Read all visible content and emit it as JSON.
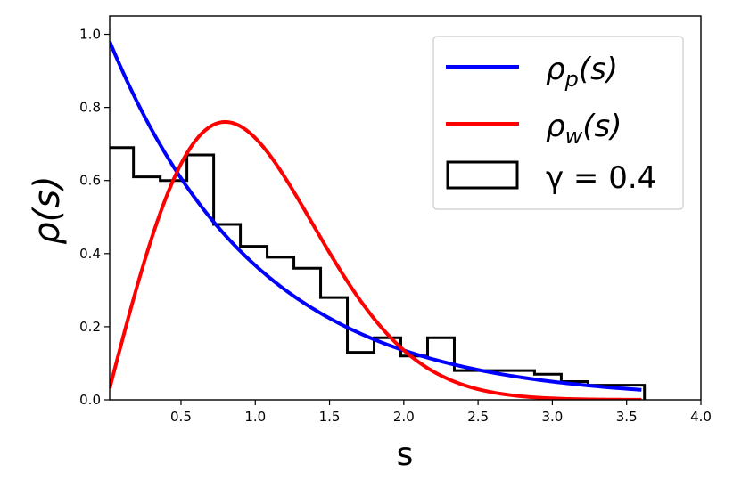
{
  "chart_data": {
    "type": "line",
    "title": "",
    "xlabel": "s",
    "ylabel": "ρ(s)",
    "xlim": [
      0.02,
      4.0
    ],
    "ylim": [
      0.0,
      1.05
    ],
    "xticks": [
      0.5,
      1.0,
      1.5,
      2.0,
      2.5,
      3.0,
      3.5,
      4.0
    ],
    "xtick_labels": [
      "0.5",
      "1.0",
      "1.5",
      "2.0",
      "2.5",
      "3.0",
      "3.5",
      "4.0"
    ],
    "yticks": [
      0.0,
      0.2,
      0.4,
      0.6,
      0.8,
      1.0
    ],
    "ytick_labels": [
      "0.0",
      "0.2",
      "0.4",
      "0.6",
      "0.8",
      "1.0"
    ],
    "grid": false,
    "legend_position": "top-right",
    "series": [
      {
        "name": "ρp(s)",
        "kind": "line",
        "color": "#0000ff",
        "function": "exp(-s)",
        "x": [
          0.02,
          0.1,
          0.2,
          0.3,
          0.4,
          0.5,
          0.6,
          0.7,
          0.8,
          0.9,
          1.0,
          1.1,
          1.2,
          1.3,
          1.4,
          1.5,
          1.6,
          1.7,
          1.8,
          1.9,
          2.0,
          2.1,
          2.2,
          2.3,
          2.4,
          2.5,
          2.6,
          2.7,
          2.8,
          2.9,
          3.0,
          3.1,
          3.2,
          3.3,
          3.4,
          3.5,
          3.6
        ],
        "y": [
          0.98,
          0.905,
          0.819,
          0.741,
          0.67,
          0.607,
          0.549,
          0.497,
          0.449,
          0.407,
          0.368,
          0.333,
          0.301,
          0.273,
          0.247,
          0.223,
          0.202,
          0.183,
          0.165,
          0.15,
          0.135,
          0.122,
          0.111,
          0.1,
          0.091,
          0.082,
          0.074,
          0.067,
          0.061,
          0.055,
          0.05,
          0.045,
          0.041,
          0.037,
          0.033,
          0.03,
          0.027
        ]
      },
      {
        "name": "ρw(s)",
        "kind": "line",
        "color": "#ff0000",
        "function": "(π/2) s exp(-π s²/4)",
        "x": [
          0.02,
          0.1,
          0.2,
          0.3,
          0.4,
          0.5,
          0.6,
          0.7,
          0.8,
          0.9,
          1.0,
          1.1,
          1.2,
          1.3,
          1.4,
          1.5,
          1.6,
          1.7,
          1.8,
          1.9,
          2.0,
          2.1,
          2.2,
          2.3,
          2.4,
          2.5,
          2.6,
          2.7,
          2.8,
          2.9,
          3.0,
          3.1,
          3.2,
          3.3,
          3.4,
          3.5,
          3.6
        ],
        "y": [
          0.031,
          0.156,
          0.304,
          0.439,
          0.553,
          0.647,
          0.707,
          0.745,
          0.759,
          0.749,
          0.716,
          0.674,
          0.621,
          0.556,
          0.487,
          0.416,
          0.348,
          0.286,
          0.229,
          0.179,
          0.136,
          0.102,
          0.075,
          0.053,
          0.037,
          0.025,
          0.016,
          0.01,
          0.007,
          0.004,
          0.003,
          0.002,
          0.001,
          0.001,
          0.0,
          0.0,
          0.0
        ]
      },
      {
        "name": "γ = 0.4",
        "kind": "step-histogram",
        "color": "#000000",
        "bin_edges": [
          0.0,
          0.18,
          0.36,
          0.54,
          0.72,
          0.9,
          1.08,
          1.26,
          1.44,
          1.62,
          1.8,
          1.98,
          2.16,
          2.34,
          2.52,
          2.7,
          2.88,
          3.06,
          3.24,
          3.42,
          3.62
        ],
        "values": [
          0.69,
          0.61,
          0.6,
          0.67,
          0.48,
          0.42,
          0.39,
          0.36,
          0.28,
          0.13,
          0.17,
          0.12,
          0.17,
          0.08,
          0.08,
          0.08,
          0.07,
          0.05,
          0.04,
          0.04
        ]
      }
    ]
  },
  "legend": {
    "items": [
      {
        "base": "ρ",
        "sub": "p",
        "rest": "(s)",
        "color": "#0000ff"
      },
      {
        "base": "ρ",
        "sub": "w",
        "rest": "(s)",
        "color": "#ff0000"
      },
      {
        "label": "γ = 0.4",
        "color": "#000000"
      }
    ]
  }
}
